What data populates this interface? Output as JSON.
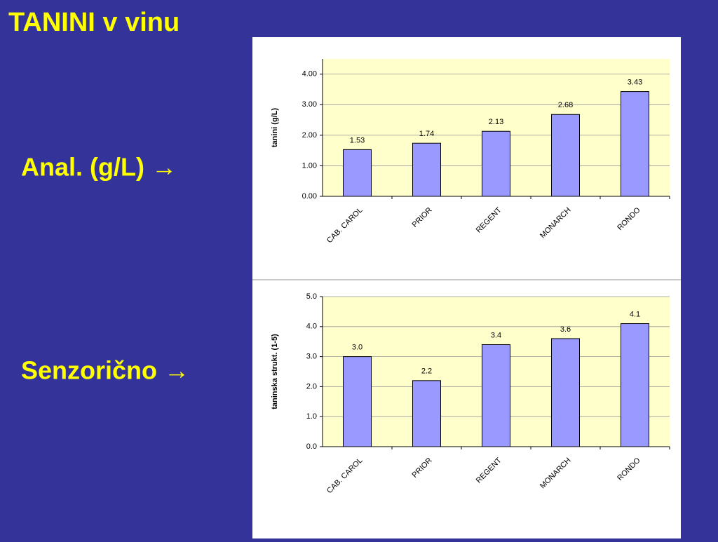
{
  "title": "TANINI v vinu",
  "labels": [
    "Anal. (g/L) →",
    "Senzorično →"
  ],
  "chart_data": [
    {
      "type": "bar",
      "y_label": "tanini (g/L)",
      "categories": [
        "CAB. CAROL",
        "PRIOR",
        "REGENT",
        "MONARCH",
        "RONDO"
      ],
      "values": [
        1.53,
        1.74,
        2.13,
        2.68,
        3.43
      ],
      "color": "#9999ff",
      "ylim": [
        0,
        4.5
      ],
      "yticks": [
        {
          "value": 0,
          "label": "0.00"
        },
        {
          "value": 1,
          "label": "1.00"
        },
        {
          "value": 2,
          "label": "2.00"
        },
        {
          "value": 3,
          "label": "3.00"
        },
        {
          "value": 4,
          "label": "4.00"
        }
      ],
      "grid": true
    },
    {
      "type": "bar",
      "y_label": "taninska strukt. (1-5)",
      "categories": [
        "CAB. CAROL",
        "PRIOR",
        "REGENT",
        "MONARCH",
        "RONDO"
      ],
      "values": [
        3.0,
        2.2,
        3.4,
        3.6,
        4.1
      ],
      "value_labels": [
        "3.0",
        "2.2",
        "3.4",
        "3.6",
        "4.1"
      ],
      "color": "#9999ff",
      "ylim": [
        0,
        5
      ],
      "yticks": [
        {
          "value": 0,
          "label": "0.0"
        },
        {
          "value": 1,
          "label": "1.0"
        },
        {
          "value": 2,
          "label": "2.0"
        },
        {
          "value": 3,
          "label": "3.0"
        },
        {
          "value": 4,
          "label": "4.0"
        },
        {
          "value": 5,
          "label": "5.0"
        }
      ],
      "grid": true
    }
  ]
}
